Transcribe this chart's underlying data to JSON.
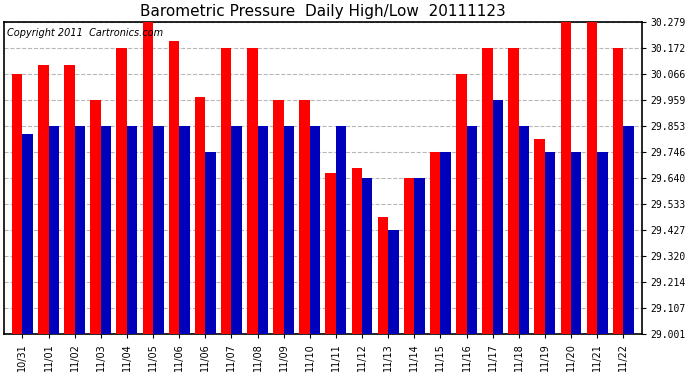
{
  "title": "Barometric Pressure  Daily High/Low  20111123",
  "copyright_text": "Copyright 2011  Cartronics.com",
  "categories": [
    "10/31",
    "11/01",
    "11/02",
    "11/03",
    "11/04",
    "11/05",
    "11/06",
    "11/06",
    "11/07",
    "11/08",
    "11/09",
    "11/10",
    "11/11",
    "11/12",
    "11/13",
    "11/14",
    "11/15",
    "11/16",
    "11/17",
    "11/18",
    "11/19",
    "11/20",
    "11/21",
    "11/22"
  ],
  "highs": [
    30.066,
    30.1,
    30.1,
    29.959,
    30.172,
    30.279,
    30.2,
    29.97,
    30.172,
    30.172,
    29.959,
    29.959,
    29.66,
    29.68,
    29.48,
    29.64,
    29.746,
    30.066,
    30.172,
    30.172,
    29.8,
    30.279,
    30.279,
    30.172
  ],
  "lows": [
    29.82,
    29.853,
    29.853,
    29.853,
    29.853,
    29.853,
    29.853,
    29.746,
    29.853,
    29.853,
    29.853,
    29.853,
    29.853,
    29.64,
    29.427,
    29.64,
    29.746,
    29.853,
    29.959,
    29.853,
    29.746,
    29.746,
    29.746,
    29.853
  ],
  "ylim_min": 29.001,
  "ylim_max": 30.279,
  "yticks": [
    29.001,
    29.107,
    29.214,
    29.32,
    29.427,
    29.533,
    29.64,
    29.746,
    29.853,
    29.959,
    30.066,
    30.172,
    30.279
  ],
  "bar_color_high": "#ff0000",
  "bar_color_low": "#0000bb",
  "background_color": "#ffffff",
  "grid_color": "#999999",
  "title_fontsize": 11,
  "copyright_fontsize": 7,
  "tick_fontsize": 7
}
